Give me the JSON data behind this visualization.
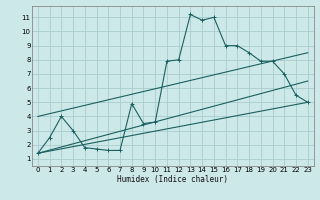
{
  "xlabel": "Humidex (Indice chaleur)",
  "bg_color": "#cde8e8",
  "grid_color": "#aacccc",
  "line_color": "#1a6060",
  "xlim": [
    -0.5,
    23.5
  ],
  "ylim": [
    0.5,
    11.8
  ],
  "xticks": [
    0,
    1,
    2,
    3,
    4,
    5,
    6,
    7,
    8,
    9,
    10,
    11,
    12,
    13,
    14,
    15,
    16,
    17,
    18,
    19,
    20,
    21,
    22,
    23
  ],
  "yticks": [
    1,
    2,
    3,
    4,
    5,
    6,
    7,
    8,
    9,
    10,
    11
  ],
  "curve1_x": [
    0,
    1,
    2,
    3,
    4,
    5,
    6,
    7,
    8,
    9,
    10,
    11,
    12,
    13,
    14,
    15,
    16,
    17,
    18,
    19,
    20,
    21,
    22,
    23
  ],
  "curve1_y": [
    1.4,
    2.5,
    4.0,
    3.0,
    1.8,
    1.7,
    1.6,
    1.6,
    4.9,
    3.5,
    3.6,
    7.9,
    8.0,
    11.2,
    10.8,
    11.0,
    9.0,
    9.0,
    8.5,
    7.9,
    7.9,
    7.0,
    5.5,
    5.0
  ],
  "curve2_x": [
    0,
    23
  ],
  "curve2_y": [
    1.4,
    5.0
  ],
  "curve3_x": [
    0,
    23
  ],
  "curve3_y": [
    4.0,
    8.5
  ],
  "curve4_x": [
    0,
    23
  ],
  "curve4_y": [
    1.4,
    6.5
  ]
}
